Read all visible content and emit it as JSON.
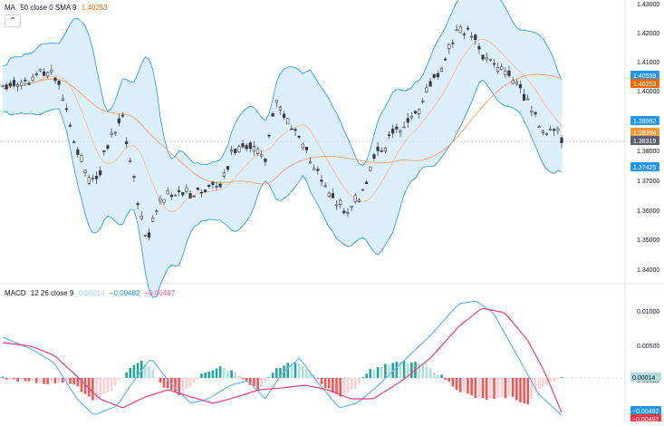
{
  "price_pane": {
    "legend": {
      "name": "MA",
      "params": "50 close 0 SMA 9",
      "value": "1.40253",
      "value_color": "#ef6c00"
    },
    "axis_ticks": [
      "1.43000",
      "1.42000",
      "1.41000",
      "1.40000",
      "1.39000",
      "1.38000",
      "1.37000",
      "1.36000",
      "1.35000",
      "1.34000"
    ],
    "price_tags": [
      {
        "label": "1.40559",
        "color": "#2196f3"
      },
      {
        "label": "1.40253",
        "color": "#ef6c00"
      },
      {
        "label": "1.38992",
        "color": "#2196f3"
      },
      {
        "label": "1.38394",
        "color": "#ef9a3a"
      },
      {
        "label": "1.38319",
        "color": "#5d606b"
      },
      {
        "label": "1.37425",
        "color": "#2196f3"
      }
    ]
  },
  "macd_pane": {
    "legend": {
      "name": "MACD",
      "params": "12 26 close 9",
      "values": [
        {
          "text": "0.00014",
          "color": "#a5d6ff"
        },
        {
          "text": "−0.00482",
          "color": "#2196f3"
        },
        {
          "text": "−0.00497",
          "color": "#f06292"
        }
      ]
    },
    "axis_ticks": [
      "0.01000",
      "0.00500",
      "0.00000"
    ],
    "value_tags": [
      {
        "label": "0.00014",
        "color": "#b2dfdb",
        "text_color": "#131722"
      },
      {
        "label": "−0.00482",
        "color": "#2196f3",
        "text_color": "#ffffff"
      },
      {
        "label": "−0.00497",
        "color": "#f23645",
        "text_color": "#ffffff"
      }
    ]
  },
  "colors": {
    "up": "#26a69a",
    "down": "#ef5350",
    "candle": "#363a45",
    "bb_band": "#2196f3",
    "bb_fill": "#cfe8fb",
    "ma": "#f0a35e",
    "macd_line": "#2196f3",
    "signal_line": "#f06292",
    "hist_up_strong": "#26a69a",
    "hist_up_weak": "#b2dfdb",
    "hist_down_strong": "#ff5252",
    "hist_down_weak": "#ffcdd2"
  },
  "icons": {
    "collapse": "chevron-up-icon"
  }
}
